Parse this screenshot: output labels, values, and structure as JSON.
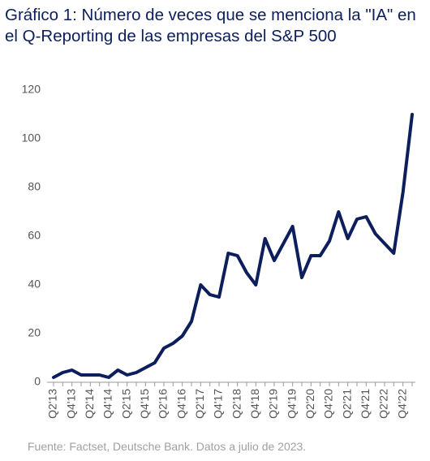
{
  "chart_data": {
    "type": "line",
    "title": "Gráfico 1: Número de veces que se menciona la \"IA\" en el Q-Reporting de las empresas del S&P 500",
    "source": "Fuente: Factset, Deutsche Bank. Datos a julio de 2023.",
    "categories": [
      "Q2'13",
      null,
      "Q4'13",
      null,
      "Q2'14",
      null,
      "Q4'14",
      null,
      "Q2'15",
      null,
      "Q4'15",
      null,
      "Q2'16",
      null,
      "Q4'16",
      null,
      "Q2'17",
      null,
      "Q4'17",
      null,
      "Q2'18",
      null,
      "Q4'18",
      null,
      "Q2'19",
      null,
      "Q4'19",
      null,
      "Q2'20",
      null,
      "Q4'20",
      null,
      "Q2'21",
      null,
      "Q4'21",
      null,
      "Q2'22",
      null,
      "Q4'22",
      null
    ],
    "values": [
      2,
      4,
      5,
      3,
      3,
      3,
      2,
      5,
      3,
      4,
      6,
      8,
      14,
      16,
      19,
      25,
      40,
      36,
      35,
      53,
      52,
      45,
      40,
      59,
      50,
      57,
      64,
      43,
      52,
      52,
      58,
      70,
      59,
      67,
      68,
      61,
      57,
      53,
      78,
      110
    ],
    "color": "#0c1f5c",
    "ylim": [
      0,
      120
    ],
    "yticks": [
      0,
      20,
      40,
      60,
      80,
      100,
      120
    ],
    "grid": false
  }
}
